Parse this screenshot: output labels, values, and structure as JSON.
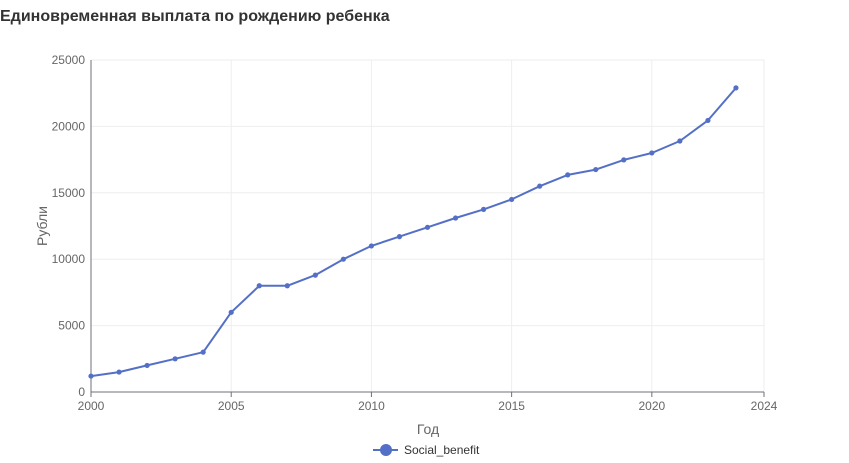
{
  "chart_data": {
    "type": "line",
    "title": "Единовременная выплата по рождению ребенка",
    "xlabel": "Год",
    "ylabel": "Рубли",
    "xlim": [
      2000,
      2024
    ],
    "ylim": [
      0,
      25000
    ],
    "xticks": [
      "2000",
      "2005",
      "2010",
      "2015",
      "2020",
      "2024"
    ],
    "yticks": [
      "0",
      "5000",
      "10000",
      "15000",
      "20000",
      "25000"
    ],
    "grid": true,
    "legend_position": "bottom-center",
    "series": [
      {
        "name": "Social_benefit",
        "color": "#5470c6",
        "x": [
          2000,
          2001,
          2002,
          2003,
          2004,
          2005,
          2006,
          2007,
          2008,
          2009,
          2010,
          2011,
          2012,
          2013,
          2014,
          2015,
          2016,
          2017,
          2018,
          2019,
          2020,
          2021,
          2022,
          2023
        ],
        "y": [
          1200,
          1500,
          2000,
          2500,
          3000,
          6000,
          8000,
          8000,
          8800,
          10000,
          11000,
          11700,
          12400,
          13100,
          13750,
          14500,
          15500,
          16350,
          16750,
          17480,
          18000,
          18900,
          20450,
          22900
        ]
      }
    ]
  }
}
